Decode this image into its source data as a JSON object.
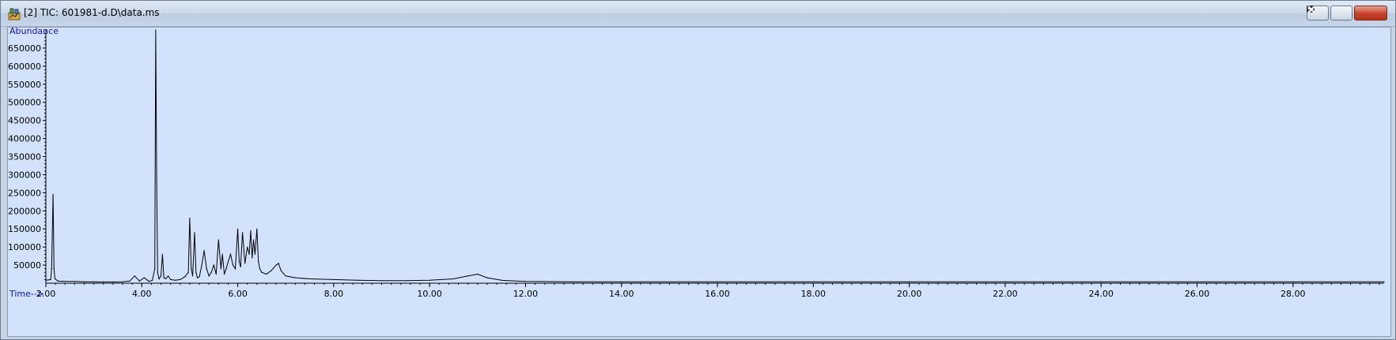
{
  "window": {
    "title": "[2] TIC: 601981-d.D\\data.ms",
    "icons": [
      "app-icon",
      "minimize-icon",
      "restore-icon",
      "close-icon"
    ]
  },
  "chart_data": {
    "type": "line",
    "ylabel": "Abundance",
    "xlabel": "Time-->",
    "xlim": [
      2.0,
      29.9
    ],
    "ylim": [
      0,
      700000
    ],
    "x_ticks": [
      "2.00",
      "4.00",
      "6.00",
      "8.00",
      "10.00",
      "12.00",
      "14.00",
      "16.00",
      "18.00",
      "20.00",
      "22.00",
      "24.00",
      "26.00",
      "28.00"
    ],
    "y_ticks": [
      "50000",
      "100000",
      "150000",
      "200000",
      "250000",
      "300000",
      "350000",
      "400000",
      "450000",
      "500000",
      "550000",
      "600000",
      "650000"
    ],
    "series": [
      {
        "color": "#000000",
        "x": [
          2.0,
          2.1,
          2.12,
          2.15,
          2.17,
          2.19,
          2.25,
          2.4,
          2.6,
          2.8,
          3.0,
          3.2,
          3.4,
          3.6,
          3.75,
          3.85,
          3.95,
          4.05,
          4.15,
          4.22,
          4.27,
          4.29,
          4.31,
          4.33,
          4.36,
          4.4,
          4.43,
          4.46,
          4.5,
          4.55,
          4.6,
          4.7,
          4.8,
          4.9,
          4.97,
          5.0,
          5.03,
          5.06,
          5.1,
          5.13,
          5.16,
          5.2,
          5.25,
          5.3,
          5.35,
          5.4,
          5.45,
          5.5,
          5.55,
          5.6,
          5.65,
          5.68,
          5.72,
          5.76,
          5.8,
          5.85,
          5.9,
          5.95,
          6.0,
          6.03,
          6.06,
          6.1,
          6.15,
          6.2,
          6.24,
          6.27,
          6.3,
          6.33,
          6.36,
          6.4,
          6.43,
          6.46,
          6.5,
          6.6,
          6.7,
          6.8,
          6.85,
          6.9,
          7.0,
          7.2,
          7.5,
          8.0,
          8.5,
          9.0,
          9.5,
          10.0,
          10.5,
          10.8,
          11.0,
          11.2,
          11.5,
          12.0,
          13.0,
          14.0,
          16.0,
          18.0,
          20.0,
          22.0,
          24.0,
          26.0,
          28.0,
          29.9
        ],
        "y": [
          8000,
          10000,
          40000,
          245000,
          40000,
          12000,
          6000,
          5000,
          5000,
          4000,
          4000,
          3500,
          3500,
          4000,
          6000,
          20000,
          6000,
          15000,
          5000,
          8000,
          40000,
          700000,
          280000,
          30000,
          12000,
          20000,
          80000,
          15000,
          12000,
          20000,
          10000,
          8000,
          10000,
          18000,
          30000,
          180000,
          40000,
          20000,
          140000,
          30000,
          15000,
          18000,
          50000,
          90000,
          40000,
          20000,
          30000,
          50000,
          25000,
          120000,
          40000,
          80000,
          25000,
          40000,
          60000,
          80000,
          50000,
          40000,
          150000,
          60000,
          45000,
          140000,
          55000,
          100000,
          80000,
          145000,
          70000,
          120000,
          80000,
          150000,
          60000,
          40000,
          30000,
          25000,
          35000,
          50000,
          55000,
          35000,
          20000,
          15000,
          12000,
          10000,
          8000,
          7000,
          7000,
          8000,
          12000,
          20000,
          25000,
          15000,
          8000,
          5000,
          4000,
          4000,
          4000,
          4000,
          4000,
          4000,
          4000,
          4000,
          4000,
          4000
        ]
      }
    ]
  }
}
